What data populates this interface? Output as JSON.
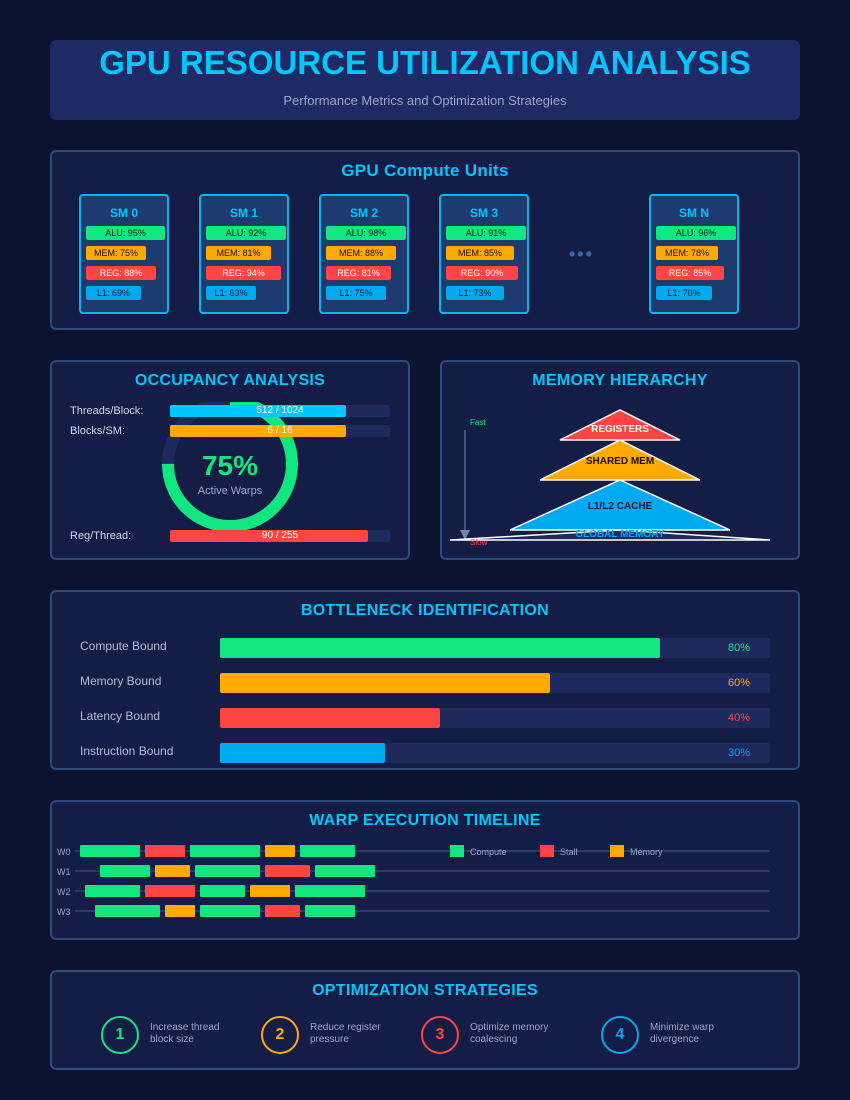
{
  "header": {
    "title": "GPU RESOURCE UTILIZATION ANALYSIS",
    "subtitle": "Performance Metrics and Optimization Strategies"
  },
  "compute": {
    "title": "GPU Compute Units",
    "units": [
      {
        "name": "SM 0",
        "alu": "ALU: 95%",
        "mem": "MEM: 75%",
        "reg": "REG: 88%",
        "l1": "L1: 69%",
        "alu_pct": 95,
        "mem_pct": 75,
        "reg_pct": 88,
        "l1_pct": 69
      },
      {
        "name": "SM 1",
        "alu": "ALU: 92%",
        "mem": "MEM: 81%",
        "reg": "REG: 94%",
        "l1": "L1: 63%",
        "alu_pct": 92,
        "mem_pct": 81,
        "reg_pct": 94,
        "l1_pct": 63
      },
      {
        "name": "SM 2",
        "alu": "ALU: 98%",
        "mem": "MEM: 88%",
        "reg": "REG: 81%",
        "l1": "L1: 75%",
        "alu_pct": 98,
        "mem_pct": 88,
        "reg_pct": 81,
        "l1_pct": 75
      },
      {
        "name": "SM 3",
        "alu": "ALU: 91%",
        "mem": "MEM: 85%",
        "reg": "REG: 90%",
        "l1": "L1: 73%",
        "alu_pct": 91,
        "mem_pct": 85,
        "reg_pct": 90,
        "l1_pct": 73
      },
      {
        "name": "SM N",
        "alu": "ALU: 96%",
        "mem": "MEM: 78%",
        "reg": "REG: 85%",
        "l1": "L1: 70%",
        "alu_pct": 96,
        "mem_pct": 78,
        "reg_pct": 85,
        "l1_pct": 70
      }
    ],
    "ellipsis": "•••"
  },
  "occupancy": {
    "title": "OCCUPANCY ANALYSIS",
    "threads_label": "Threads/Block:",
    "threads_value": "512 / 1024",
    "threads_pct": 80,
    "blocks_label": "Blocks/SM:",
    "blocks_value": "6 / 16",
    "blocks_pct": 80,
    "reg_label": "Reg/Thread:",
    "reg_value": "90 / 255",
    "reg_pct": 90,
    "active": "75%",
    "active_label": "Active Warps",
    "active_pct": 75
  },
  "memory": {
    "title": "MEMORY HIERARCHY",
    "levels": [
      "REGISTERS",
      "SHARED MEM",
      "L1/L2 CACHE",
      "GLOBAL MEMORY"
    ],
    "fast": "Fast",
    "slow": "Slow"
  },
  "bottleneck": {
    "title": "BOTTLENECK IDENTIFICATION",
    "items": [
      {
        "label": "Compute Bound",
        "value": "80%",
        "pct": 80,
        "color": "#12e680"
      },
      {
        "label": "Memory Bound",
        "value": "60%",
        "pct": 60,
        "color": "#ffaa00"
      },
      {
        "label": "Latency Bound",
        "value": "40%",
        "pct": 40,
        "color": "#ff4444"
      },
      {
        "label": "Instruction Bound",
        "value": "30%",
        "pct": 30,
        "color": "#00aaf0"
      }
    ]
  },
  "warp": {
    "title": "WARP EXECUTION TIMELINE",
    "warps": [
      "W0",
      "W1",
      "W2",
      "W3"
    ],
    "legend": [
      "Compute",
      "Stall",
      "Memory"
    ]
  },
  "optimization": {
    "title": "OPTIMIZATION STRATEGIES",
    "items": [
      {
        "num": "1",
        "text": "Increase thread block size",
        "color": "#12e680"
      },
      {
        "num": "2",
        "text": "Reduce register pressure",
        "color": "#ffaa00"
      },
      {
        "num": "3",
        "text": "Optimize memory coalescing",
        "color": "#ff4444"
      },
      {
        "num": "4",
        "text": "Minimize warp divergence",
        "color": "#00aaf0"
      }
    ]
  },
  "colors": {
    "accent": "#00c8ff",
    "compute": "#12e680",
    "memory": "#ffaa00",
    "stall": "#ff4444",
    "cache": "#00aaf0"
  }
}
